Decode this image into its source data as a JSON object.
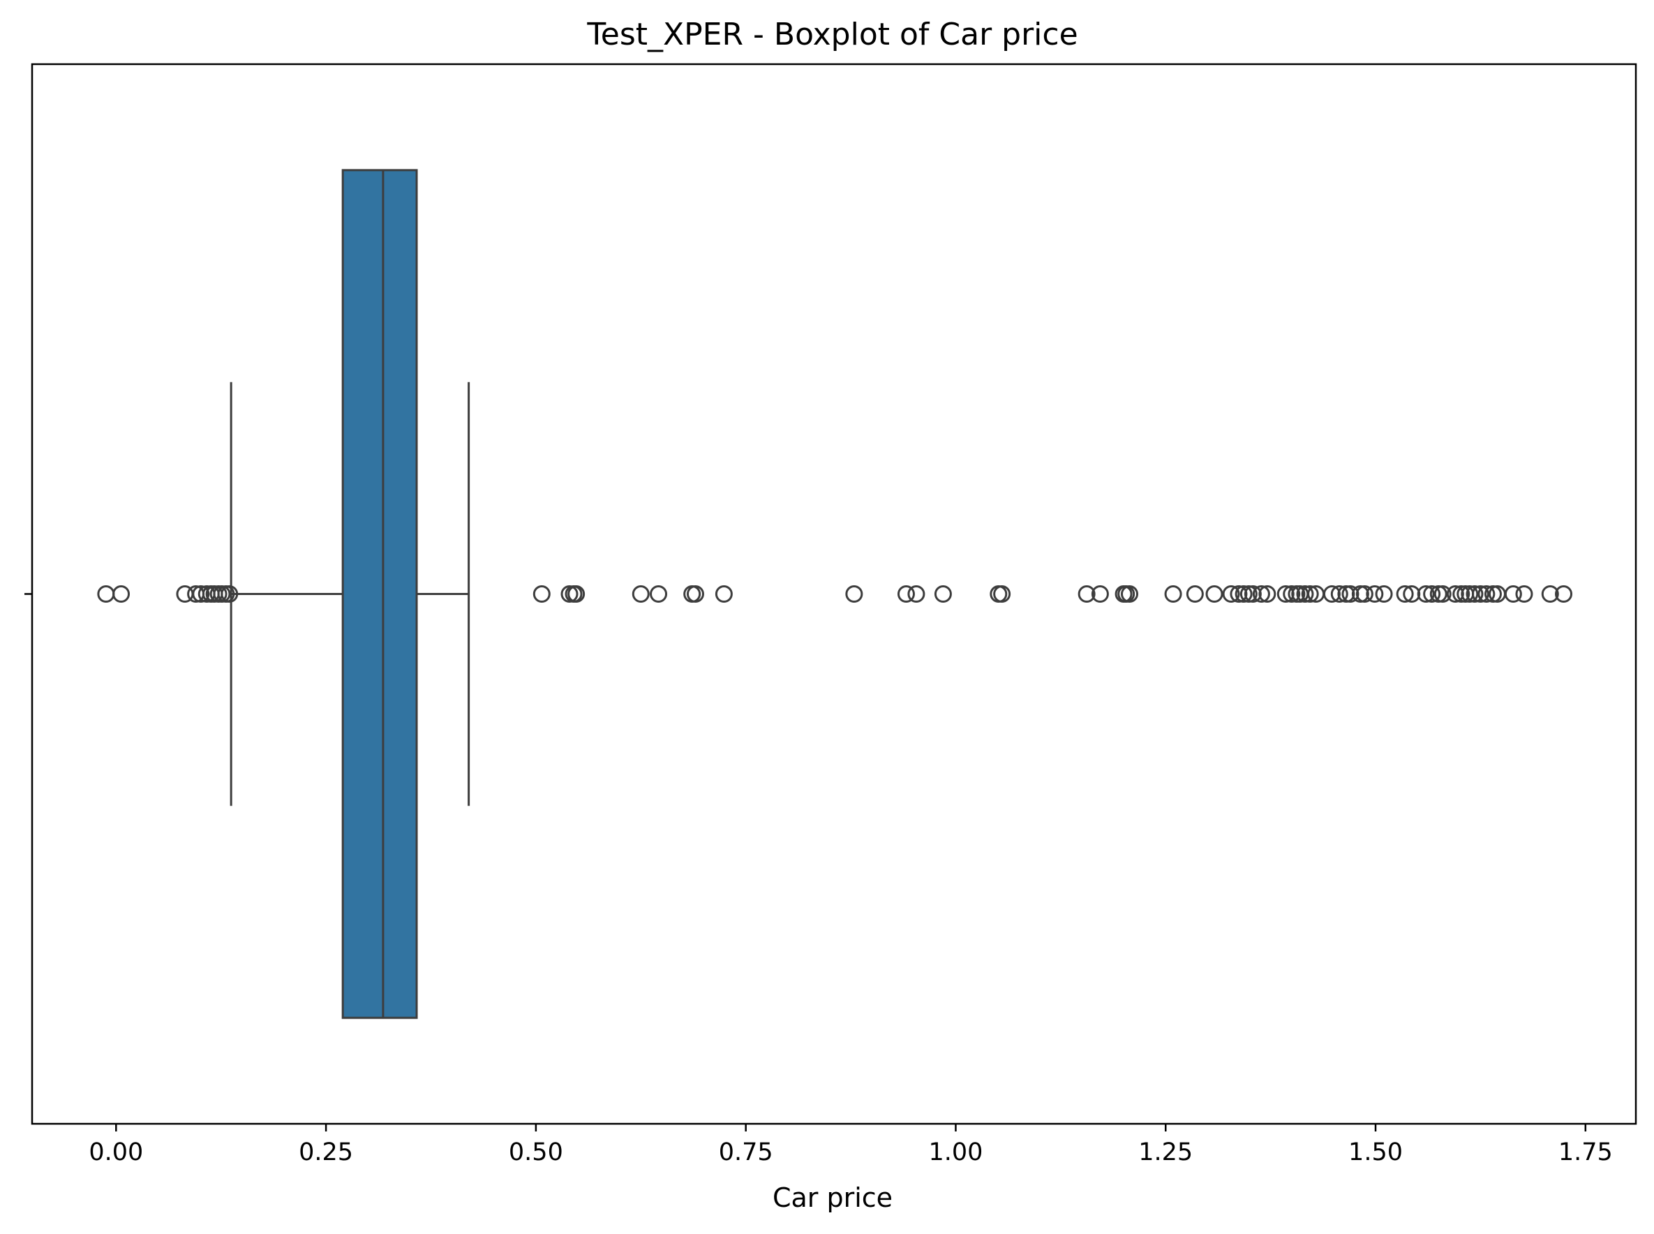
{
  "chart_data": {
    "type": "boxplot",
    "orientation": "horizontal",
    "title": "Test_XPER - Boxplot of Car price",
    "xlabel": "Car price",
    "ylabel": "",
    "xlim": [
      -0.1,
      1.81
    ],
    "xticks": [
      0.0,
      0.25,
      0.5,
      0.75,
      1.0,
      1.25,
      1.5,
      1.75
    ],
    "xtick_labels": [
      "0.00",
      "0.25",
      "0.50",
      "0.75",
      "1.00",
      "1.25",
      "1.50",
      "1.75"
    ],
    "grid": false,
    "box": {
      "whisker_low": 0.137,
      "q1": 0.27,
      "median": 0.318,
      "q3": 0.358,
      "whisker_high": 0.42
    },
    "outliers": [
      -0.012,
      0.006,
      0.082,
      0.095,
      0.101,
      0.108,
      0.113,
      0.117,
      0.122,
      0.126,
      0.131,
      0.135,
      0.507,
      0.54,
      0.545,
      0.548,
      0.625,
      0.646,
      0.686,
      0.69,
      0.724,
      0.879,
      0.941,
      0.953,
      0.985,
      1.051,
      1.055,
      1.156,
      1.172,
      1.2,
      1.203,
      1.207,
      1.259,
      1.285,
      1.308,
      1.328,
      1.337,
      1.343,
      1.349,
      1.354,
      1.364,
      1.371,
      1.393,
      1.4,
      1.406,
      1.41,
      1.416,
      1.422,
      1.429,
      1.448,
      1.457,
      1.465,
      1.47,
      1.482,
      1.487,
      1.499,
      1.51,
      1.535,
      1.543,
      1.56,
      1.567,
      1.575,
      1.58,
      1.595,
      1.602,
      1.607,
      1.612,
      1.618,
      1.625,
      1.632,
      1.64,
      1.645,
      1.664,
      1.677,
      1.708,
      1.724
    ],
    "colors": {
      "box_fill": "#3274a1",
      "line": "#3d3d3d"
    }
  }
}
